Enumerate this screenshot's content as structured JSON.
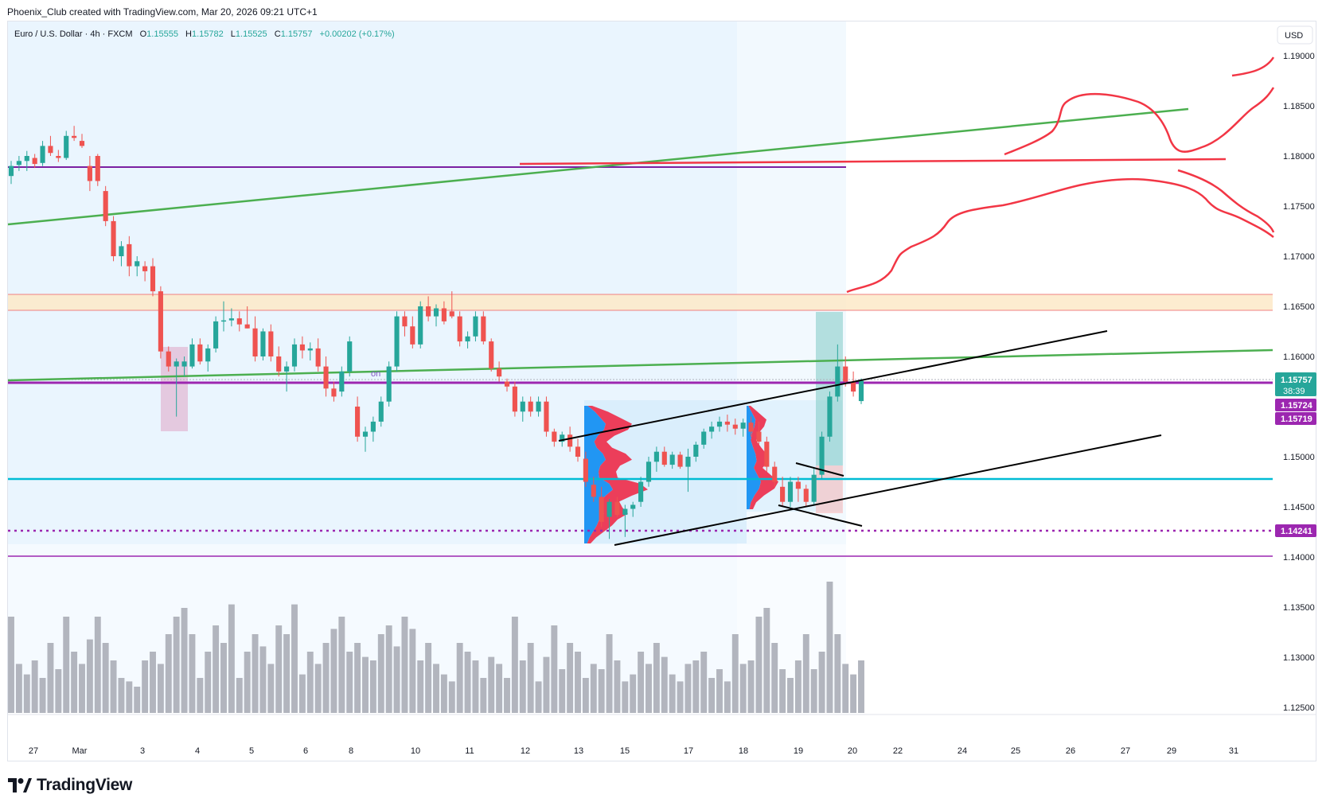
{
  "header": {
    "caption": "Phoenix_Club created with TradingView.com, Mar 20, 2026 09:21 UTC+1"
  },
  "legend": {
    "symbol": "Euro / U.S. Dollar · 4h · FXCM",
    "o_label": "O",
    "o_value": "1.15555",
    "h_label": "H",
    "h_value": "1.15782",
    "l_label": "L",
    "l_value": "1.15525",
    "c_label": "C",
    "c_value": "1.15757",
    "change": "+0.00202 (+0.17%)"
  },
  "currency_button": "USD",
  "price_tags": {
    "last_price": "1.15757",
    "countdown": "38:39",
    "tag_1": "1.15724",
    "tag_2": "1.15719",
    "tag_3": "1.14241"
  },
  "brand": {
    "name": "TradingView",
    "icon": "tradingview-logo-icon"
  },
  "colors": {
    "up": "#26a69a",
    "down": "#ef5350",
    "green_trend": "#4caf50",
    "purple_level": "#9c27b0",
    "cyan_level": "#00bcd4",
    "drawing_red": "#f23645",
    "tag_purple": "#9c27b0",
    "volume": "#b2b5be"
  },
  "chart_data": {
    "type": "candlestick",
    "symbol": "Euro / U.S. Dollar",
    "interval": "4h",
    "source": "FXCM",
    "y_axis_ticks": [
      "1.19000",
      "1.18500",
      "1.18000",
      "1.17500",
      "1.17000",
      "1.16500",
      "1.16000",
      "1.15500",
      "1.15000",
      "1.14500",
      "1.14000",
      "1.13500",
      "1.13000",
      "1.12500"
    ],
    "x_axis_ticks": [
      "27",
      "Mar",
      "3",
      "4",
      "5",
      "6",
      "8",
      "10",
      "11",
      "12",
      "13",
      "15",
      "17",
      "18",
      "19",
      "20",
      "22",
      "24",
      "25",
      "26",
      "27",
      "29",
      "31"
    ],
    "ylim": [
      1.1225,
      1.1925
    ],
    "horizontal_levels": [
      1.1795,
      1.1572,
      1.1476,
      1.14241,
      1.14
    ],
    "zone": [
      1.1645,
      1.1661
    ],
    "candles_ohlc": [
      [
        1.178,
        1.1795,
        1.1772,
        1.179
      ],
      [
        1.1791,
        1.18,
        1.1785,
        1.1795
      ],
      [
        1.1795,
        1.1805,
        1.1785,
        1.18
      ],
      [
        1.1798,
        1.1802,
        1.1788,
        1.1792
      ],
      [
        1.1793,
        1.1815,
        1.179,
        1.181
      ],
      [
        1.181,
        1.182,
        1.18,
        1.1803
      ],
      [
        1.18,
        1.1806,
        1.1794,
        1.1798
      ],
      [
        1.1798,
        1.1825,
        1.1796,
        1.182
      ],
      [
        1.182,
        1.183,
        1.1815,
        1.1818
      ],
      [
        1.1815,
        1.1822,
        1.1808,
        1.181
      ],
      [
        1.179,
        1.18,
        1.1765,
        1.1775
      ],
      [
        1.18,
        1.1802,
        1.177,
        1.1775
      ],
      [
        1.1765,
        1.177,
        1.173,
        1.1735
      ],
      [
        1.1735,
        1.174,
        1.1695,
        1.17
      ],
      [
        1.17,
        1.1715,
        1.169,
        1.171
      ],
      [
        1.1712,
        1.172,
        1.168,
        1.169
      ],
      [
        1.169,
        1.17,
        1.168,
        1.1695
      ],
      [
        1.169,
        1.1695,
        1.1675,
        1.1685
      ],
      [
        1.169,
        1.1698,
        1.166,
        1.1665
      ],
      [
        1.1665,
        1.167,
        1.1598,
        1.1605
      ],
      [
        1.1605,
        1.161,
        1.1585,
        1.159
      ],
      [
        1.159,
        1.1598,
        1.154,
        1.1595
      ],
      [
        1.159,
        1.16,
        1.158,
        1.1595
      ],
      [
        1.159,
        1.1618,
        1.1588,
        1.1612
      ],
      [
        1.1612,
        1.1618,
        1.1592,
        1.1595
      ],
      [
        1.1595,
        1.1612,
        1.1585,
        1.1608
      ],
      [
        1.1608,
        1.164,
        1.1604,
        1.1635
      ],
      [
        1.1635,
        1.1655,
        1.1625,
        1.1636
      ],
      [
        1.1636,
        1.1648,
        1.163,
        1.1638
      ],
      [
        1.1638,
        1.1645,
        1.1625,
        1.1632
      ],
      [
        1.1632,
        1.165,
        1.1628,
        1.1628
      ],
      [
        1.1628,
        1.164,
        1.1595,
        1.16
      ],
      [
        1.16,
        1.1628,
        1.1596,
        1.1625
      ],
      [
        1.1625,
        1.1632,
        1.1595,
        1.16
      ],
      [
        1.16,
        1.161,
        1.158,
        1.1585
      ],
      [
        1.1585,
        1.1595,
        1.1565,
        1.159
      ],
      [
        1.159,
        1.1618,
        1.1585,
        1.1612
      ],
      [
        1.1612,
        1.162,
        1.1598,
        1.1606
      ],
      [
        1.1606,
        1.1614,
        1.1596,
        1.1608
      ],
      [
        1.1608,
        1.1618,
        1.1585,
        1.159
      ],
      [
        1.159,
        1.16,
        1.156,
        1.1568
      ],
      [
        1.1568,
        1.1575,
        1.1555,
        1.156
      ],
      [
        1.1565,
        1.159,
        1.156,
        1.1585
      ],
      [
        1.1585,
        1.162,
        1.158,
        1.1615
      ],
      [
        1.155,
        1.156,
        1.1515,
        1.152
      ],
      [
        1.152,
        1.153,
        1.1505,
        1.1525
      ],
      [
        1.1525,
        1.154,
        1.1515,
        1.1535
      ],
      [
        1.1535,
        1.156,
        1.153,
        1.1555
      ],
      [
        1.1555,
        1.1595,
        1.155,
        1.159
      ],
      [
        1.159,
        1.1645,
        1.1585,
        1.164
      ],
      [
        1.164,
        1.1645,
        1.162,
        1.163
      ],
      [
        1.163,
        1.164,
        1.1608,
        1.1612
      ],
      [
        1.1612,
        1.1655,
        1.1608,
        1.165
      ],
      [
        1.165,
        1.166,
        1.1635,
        1.164
      ],
      [
        1.164,
        1.1652,
        1.163,
        1.1648
      ],
      [
        1.1648,
        1.1655,
        1.1632,
        1.1635
      ],
      [
        1.1645,
        1.1665,
        1.1638,
        1.164
      ],
      [
        1.164,
        1.1645,
        1.161,
        1.1615
      ],
      [
        1.1615,
        1.1625,
        1.1608,
        1.162
      ],
      [
        1.162,
        1.1645,
        1.1615,
        1.164
      ],
      [
        1.164,
        1.1645,
        1.1612,
        1.1615
      ],
      [
        1.1615,
        1.1618,
        1.1585,
        1.1588
      ],
      [
        1.1588,
        1.1595,
        1.1575,
        1.158
      ],
      [
        1.1575,
        1.1578,
        1.1565,
        1.157
      ],
      [
        1.157,
        1.1575,
        1.154,
        1.1545
      ],
      [
        1.1545,
        1.156,
        1.1535,
        1.1555
      ],
      [
        1.1555,
        1.156,
        1.154,
        1.1545
      ],
      [
        1.1545,
        1.156,
        1.154,
        1.1555
      ],
      [
        1.1555,
        1.156,
        1.152,
        1.1525
      ],
      [
        1.1525,
        1.1528,
        1.151,
        1.1515
      ],
      [
        1.1515,
        1.1525,
        1.151,
        1.1522
      ],
      [
        1.1522,
        1.153,
        1.1505,
        1.151
      ],
      [
        1.151,
        1.1518,
        1.1495,
        1.15
      ],
      [
        1.1498,
        1.1505,
        1.147,
        1.1475
      ],
      [
        1.1472,
        1.148,
        1.1455,
        1.146
      ],
      [
        1.146,
        1.147,
        1.143,
        1.1435
      ],
      [
        1.144,
        1.1458,
        1.1418,
        1.1455
      ],
      [
        1.1455,
        1.146,
        1.144,
        1.1442
      ],
      [
        1.1442,
        1.1452,
        1.142,
        1.1448
      ],
      [
        1.1448,
        1.1455,
        1.144,
        1.1452
      ],
      [
        1.1455,
        1.148,
        1.145,
        1.1475
      ],
      [
        1.1475,
        1.15,
        1.147,
        1.1495
      ],
      [
        1.1495,
        1.151,
        1.1485,
        1.1505
      ],
      [
        1.1505,
        1.151,
        1.149,
        1.1492
      ],
      [
        1.1492,
        1.1505,
        1.1488,
        1.1502
      ],
      [
        1.1502,
        1.1505,
        1.1488,
        1.149
      ],
      [
        1.149,
        1.1508,
        1.1465,
        1.15
      ],
      [
        1.15,
        1.1515,
        1.1495,
        1.1512
      ],
      [
        1.1512,
        1.1528,
        1.1508,
        1.1525
      ],
      [
        1.1525,
        1.1535,
        1.1518,
        1.153
      ],
      [
        1.153,
        1.154,
        1.1525,
        1.1535
      ],
      [
        1.1535,
        1.1542,
        1.1525,
        1.1532
      ],
      [
        1.1532,
        1.1538,
        1.1522,
        1.1528
      ],
      [
        1.1528,
        1.1538,
        1.152,
        1.1534
      ],
      [
        1.1534,
        1.154,
        1.152,
        1.1525
      ],
      [
        1.1525,
        1.1535,
        1.1512,
        1.1515
      ],
      [
        1.1515,
        1.152,
        1.1485,
        1.149
      ],
      [
        1.149,
        1.1495,
        1.147,
        1.1475
      ],
      [
        1.147,
        1.148,
        1.145,
        1.1455
      ],
      [
        1.1455,
        1.148,
        1.145,
        1.1475
      ],
      [
        1.1475,
        1.148,
        1.1455,
        1.1468
      ],
      [
        1.1468,
        1.1472,
        1.145,
        1.1455
      ],
      [
        1.1455,
        1.1488,
        1.1452,
        1.1482
      ],
      [
        1.1482,
        1.1525,
        1.1478,
        1.152
      ],
      [
        1.152,
        1.1565,
        1.1515,
        1.156
      ],
      [
        1.156,
        1.1612,
        1.1555,
        1.159
      ],
      [
        1.159,
        1.16,
        1.157,
        1.1575
      ],
      [
        1.1575,
        1.1585,
        1.156,
        1.1565
      ],
      [
        1.15555,
        1.15782,
        1.15525,
        1.15757
      ]
    ],
    "volume": [
      55,
      28,
      22,
      30,
      20,
      40,
      25,
      55,
      35,
      28,
      42,
      55,
      40,
      30,
      20,
      18,
      15,
      30,
      35,
      28,
      45,
      55,
      60,
      45,
      20,
      35,
      50,
      40,
      62,
      20,
      35,
      45,
      38,
      28,
      50,
      45,
      62,
      22,
      35,
      28,
      40,
      48,
      55,
      35,
      40,
      32,
      30,
      45,
      50,
      38,
      55,
      48,
      30,
      40,
      28,
      22,
      18,
      40,
      35,
      30,
      20,
      32,
      28,
      20,
      55,
      30,
      40,
      18,
      32,
      50,
      25,
      40,
      35,
      20,
      28,
      25,
      45,
      30,
      18,
      22,
      35,
      28,
      40,
      32,
      22,
      18,
      28,
      30,
      35,
      20,
      25,
      18,
      45,
      28,
      30,
      55,
      60,
      40,
      25,
      20,
      30,
      45,
      25,
      35,
      75,
      45,
      28,
      22,
      30
    ],
    "annotations": [
      "on"
    ]
  }
}
